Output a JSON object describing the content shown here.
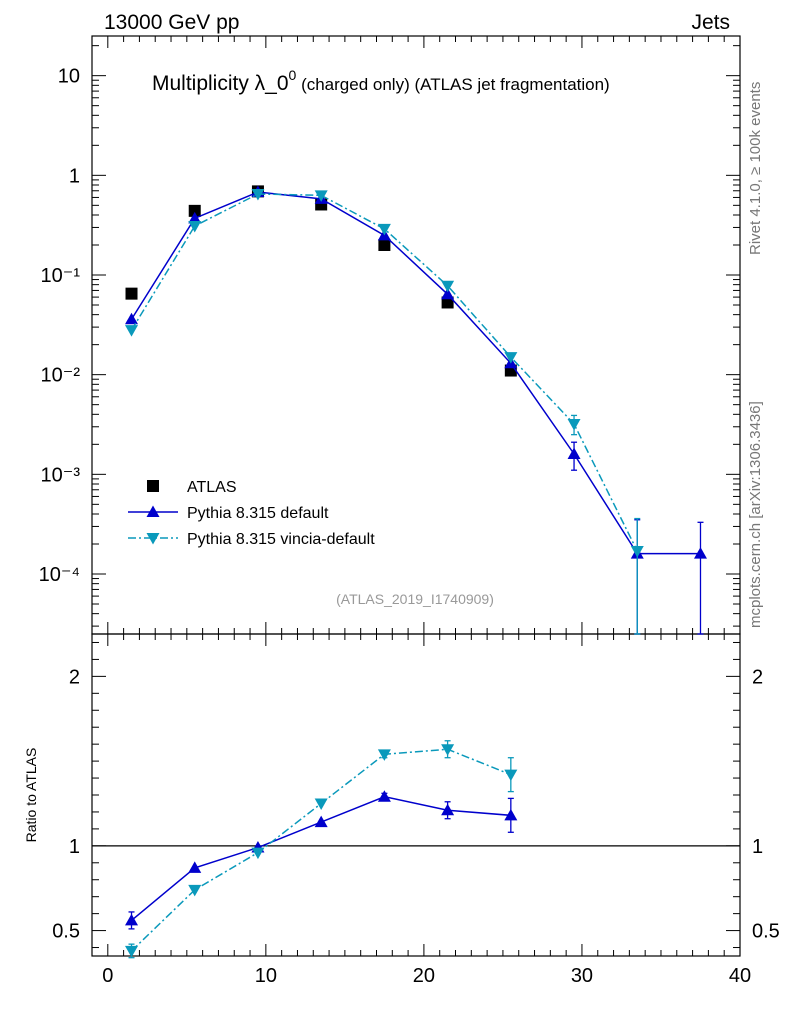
{
  "header": {
    "energy_label": "13000 GeV pp",
    "process_label": "Jets",
    "title_main": "Multiplicity λ_0",
    "title_sup": "0",
    "title_rest": " (charged only) (ATLAS jet fragmentation)",
    "side_top": "Rivet 4.1.0, ≥ 100k events",
    "side_bottom": "mcplots.cern.ch [arXiv:1306.3436]",
    "analysis_id": "(ATLAS_2019_I1740909)"
  },
  "legend": {
    "entries": [
      "ATLAS",
      "Pythia 8.315 default",
      "Pythia 8.315 vincia-default"
    ]
  },
  "colors": {
    "data": "#000000",
    "default": "#0000cc",
    "vincia": "#0a99bb"
  },
  "chart_data": {
    "type": "line",
    "x_axis": {
      "ticks": [
        0,
        10,
        20,
        30,
        40
      ],
      "labels": [
        "0",
        "10",
        "20",
        "30",
        "40"
      ],
      "range": [
        -1,
        40
      ]
    },
    "main": {
      "scale": "log",
      "ylim": [
        2.5e-05,
        25
      ],
      "y_tick_labels": [
        "10",
        "1",
        "10⁻¹",
        "10⁻²",
        "10⁻³",
        "10⁻⁴"
      ],
      "series": [
        {
          "name": "ATLAS",
          "style": "square",
          "x": [
            1.5,
            5.5,
            9.5,
            13.5,
            17.5,
            21.5,
            25.5
          ],
          "y": [
            0.065,
            0.44,
            0.69,
            0.51,
            0.2,
            0.053,
            0.011
          ]
        },
        {
          "name": "Pythia 8.315 default",
          "style": "triangle-up-solid",
          "x": [
            1.5,
            5.5,
            9.5,
            13.5,
            17.5,
            21.5,
            25.5,
            29.5,
            33.5,
            37.5
          ],
          "y": [
            0.036,
            0.37,
            0.68,
            0.58,
            0.25,
            0.064,
            0.013,
            0.0016,
            0.00016,
            0.00016
          ],
          "err": [
            0,
            0,
            0,
            0,
            0,
            0,
            0,
            0.0005,
            0.00019,
            0.00017
          ]
        },
        {
          "name": "Pythia 8.315 vincia-default",
          "style": "triangle-down-dashdot",
          "x": [
            1.5,
            5.5,
            9.5,
            13.5,
            17.5,
            21.5,
            25.5,
            29.5,
            33.5
          ],
          "y": [
            0.028,
            0.31,
            0.65,
            0.63,
            0.29,
            0.078,
            0.015,
            0.0032,
            0.00017
          ],
          "err": [
            0,
            0,
            0,
            0,
            0,
            0,
            0,
            0.0007,
            0.00019
          ]
        }
      ]
    },
    "ratio": {
      "ylabel": "Ratio to ATLAS",
      "ylim": [
        0.35,
        2.25
      ],
      "ticks": [
        0.5,
        1,
        2
      ],
      "tick_labels": [
        "0.5",
        "1",
        "2"
      ],
      "reference": 1,
      "series": [
        {
          "name": "Pythia 8.315 default",
          "x": [
            1.5,
            5.5,
            9.5,
            13.5,
            17.5,
            21.5,
            25.5
          ],
          "y": [
            0.56,
            0.87,
            0.99,
            1.14,
            1.29,
            1.21,
            1.18
          ],
          "err": [
            0.05,
            0,
            0,
            0,
            0.02,
            0.05,
            0.1
          ]
        },
        {
          "name": "Pythia 8.315 vincia-default",
          "x": [
            1.5,
            5.5,
            9.5,
            13.5,
            17.5,
            21.5,
            25.5
          ],
          "y": [
            0.38,
            0.74,
            0.96,
            1.25,
            1.54,
            1.57,
            1.42
          ],
          "err": [
            0.04,
            0,
            0,
            0,
            0.02,
            0.05,
            0.1
          ]
        }
      ]
    }
  }
}
